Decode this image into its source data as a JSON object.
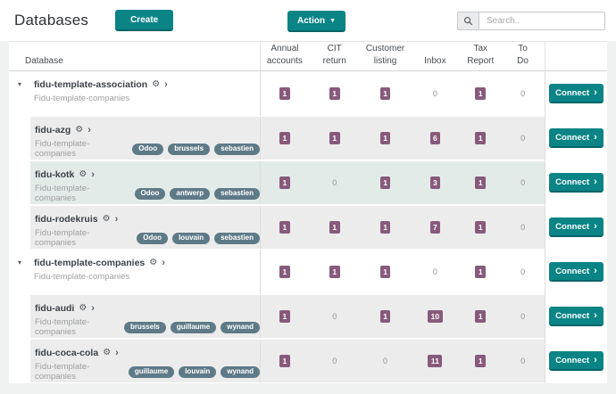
{
  "topbar": {
    "title": "Databases",
    "create_label": "Create",
    "action_label": "Action",
    "search_placeholder": "Search.."
  },
  "colors": {
    "accent_teal": "#0b8486",
    "accent_teal_dark": "#076568",
    "badge_purple": "#875a7b",
    "tag_slate": "#5e7a87",
    "child_row_bg": "#ececec",
    "highlight_row_bg": "#e3ebe9"
  },
  "table": {
    "name_column_header": "Database",
    "number_columns": [
      {
        "label": "Annual accounts",
        "lines": [
          "Annual",
          "accounts"
        ]
      },
      {
        "label": "CIT return",
        "lines": [
          "CIT",
          "return"
        ]
      },
      {
        "label": "Customer listing",
        "lines": [
          "Customer",
          "listing"
        ]
      },
      {
        "label": "Inbox",
        "lines": [
          "Inbox"
        ]
      },
      {
        "label": "Tax Report",
        "lines": [
          "Tax",
          "Report"
        ]
      },
      {
        "label": "To Do",
        "lines": [
          "To",
          "Do"
        ]
      }
    ],
    "connect_label": "Connect",
    "rows": [
      {
        "name": "fidu-template-association",
        "subtitle": "Fidu-template-companies",
        "type": "parent",
        "highlight": false,
        "tags": [],
        "values": [
          1,
          1,
          1,
          0,
          1,
          0
        ]
      },
      {
        "name": "fidu-azg",
        "subtitle": "Fidu-template-companies",
        "type": "child",
        "highlight": false,
        "tags": [
          "Odoo",
          "brussels",
          "sebastien"
        ],
        "values": [
          1,
          1,
          1,
          6,
          1,
          0
        ]
      },
      {
        "name": "fidu-kotk",
        "subtitle": "Fidu-template-companies",
        "type": "child",
        "highlight": true,
        "tags": [
          "Odoo",
          "antwerp",
          "sebastien"
        ],
        "values": [
          1,
          0,
          1,
          3,
          1,
          0
        ]
      },
      {
        "name": "fidu-rodekruis",
        "subtitle": "Fidu-template-companies",
        "type": "child",
        "highlight": false,
        "tags": [
          "Odoo",
          "louvain",
          "sebastien"
        ],
        "values": [
          1,
          1,
          1,
          7,
          1,
          0
        ]
      },
      {
        "name": "fidu-template-companies",
        "subtitle": "Fidu-template-companies",
        "type": "parent",
        "highlight": false,
        "tags": [],
        "values": [
          1,
          1,
          1,
          0,
          1,
          0
        ]
      },
      {
        "name": "fidu-audi",
        "subtitle": "Fidu-template-companies",
        "type": "child",
        "highlight": false,
        "tags": [
          "brussels",
          "guillaume",
          "wynand"
        ],
        "values": [
          1,
          0,
          1,
          10,
          1,
          0
        ]
      },
      {
        "name": "fidu-coca-cola",
        "subtitle": "Fidu-template-companies",
        "type": "child",
        "highlight": false,
        "tags": [
          "guillaume",
          "louvain",
          "wynand"
        ],
        "values": [
          1,
          0,
          0,
          11,
          1,
          0
        ]
      }
    ]
  }
}
